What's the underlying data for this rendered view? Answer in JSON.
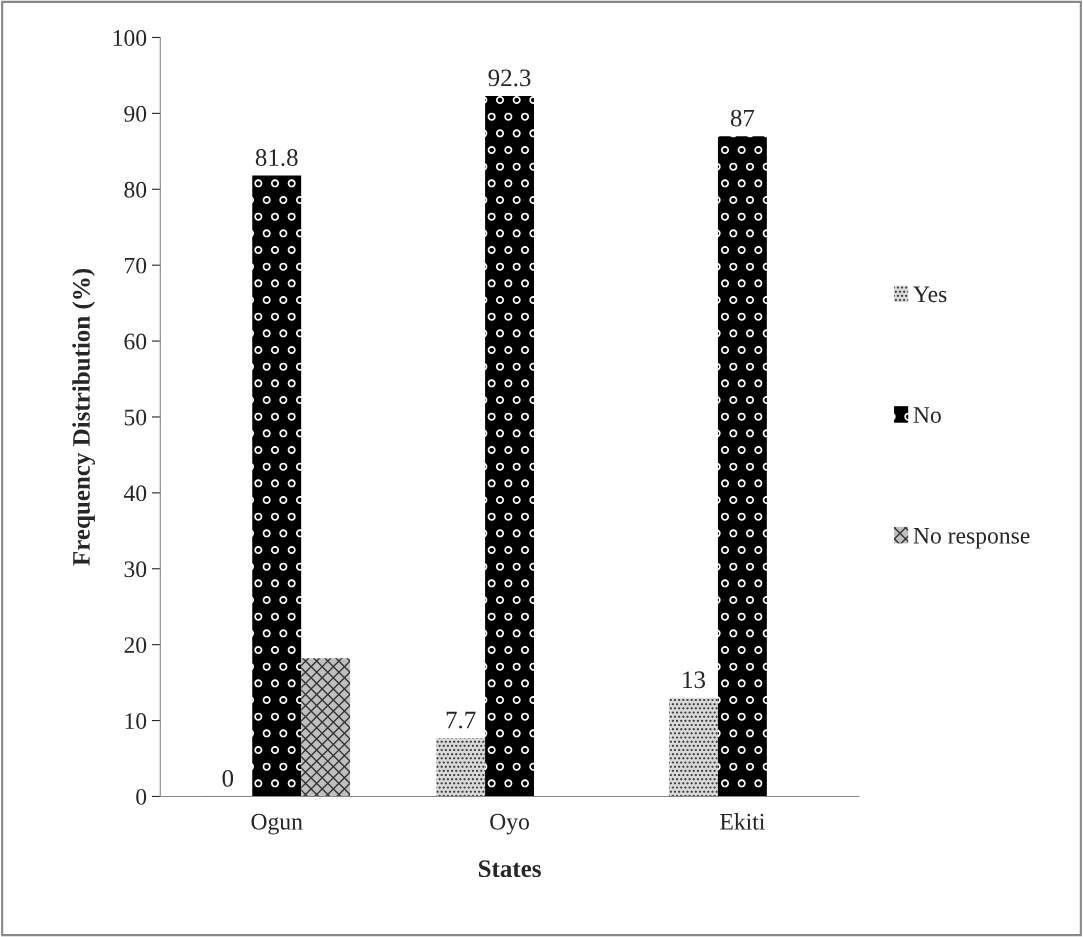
{
  "chart_data": {
    "type": "bar",
    "xlabel": "States",
    "ylabel": "Frequency Distribution (%)",
    "categories": [
      "Ogun",
      "Oyo",
      "Ekiti"
    ],
    "series": [
      {
        "name": "Yes",
        "color": "#d9d9d9",
        "values": [
          0,
          7.7,
          13
        ],
        "value_labels": [
          "0",
          "7.7",
          "13"
        ]
      },
      {
        "name": "No",
        "color": "#000000",
        "values": [
          81.8,
          92.3,
          87
        ],
        "value_labels": [
          "81.8",
          "92.3",
          "87"
        ]
      },
      {
        "name": "No response",
        "color": "#bfbfbf",
        "values": [
          18.2,
          null,
          null
        ]
      }
    ],
    "ylim": [
      0,
      100
    ],
    "yticks": [
      0,
      10,
      20,
      30,
      40,
      50,
      60,
      70,
      80,
      90,
      100
    ],
    "grid": false,
    "legend": "right"
  }
}
